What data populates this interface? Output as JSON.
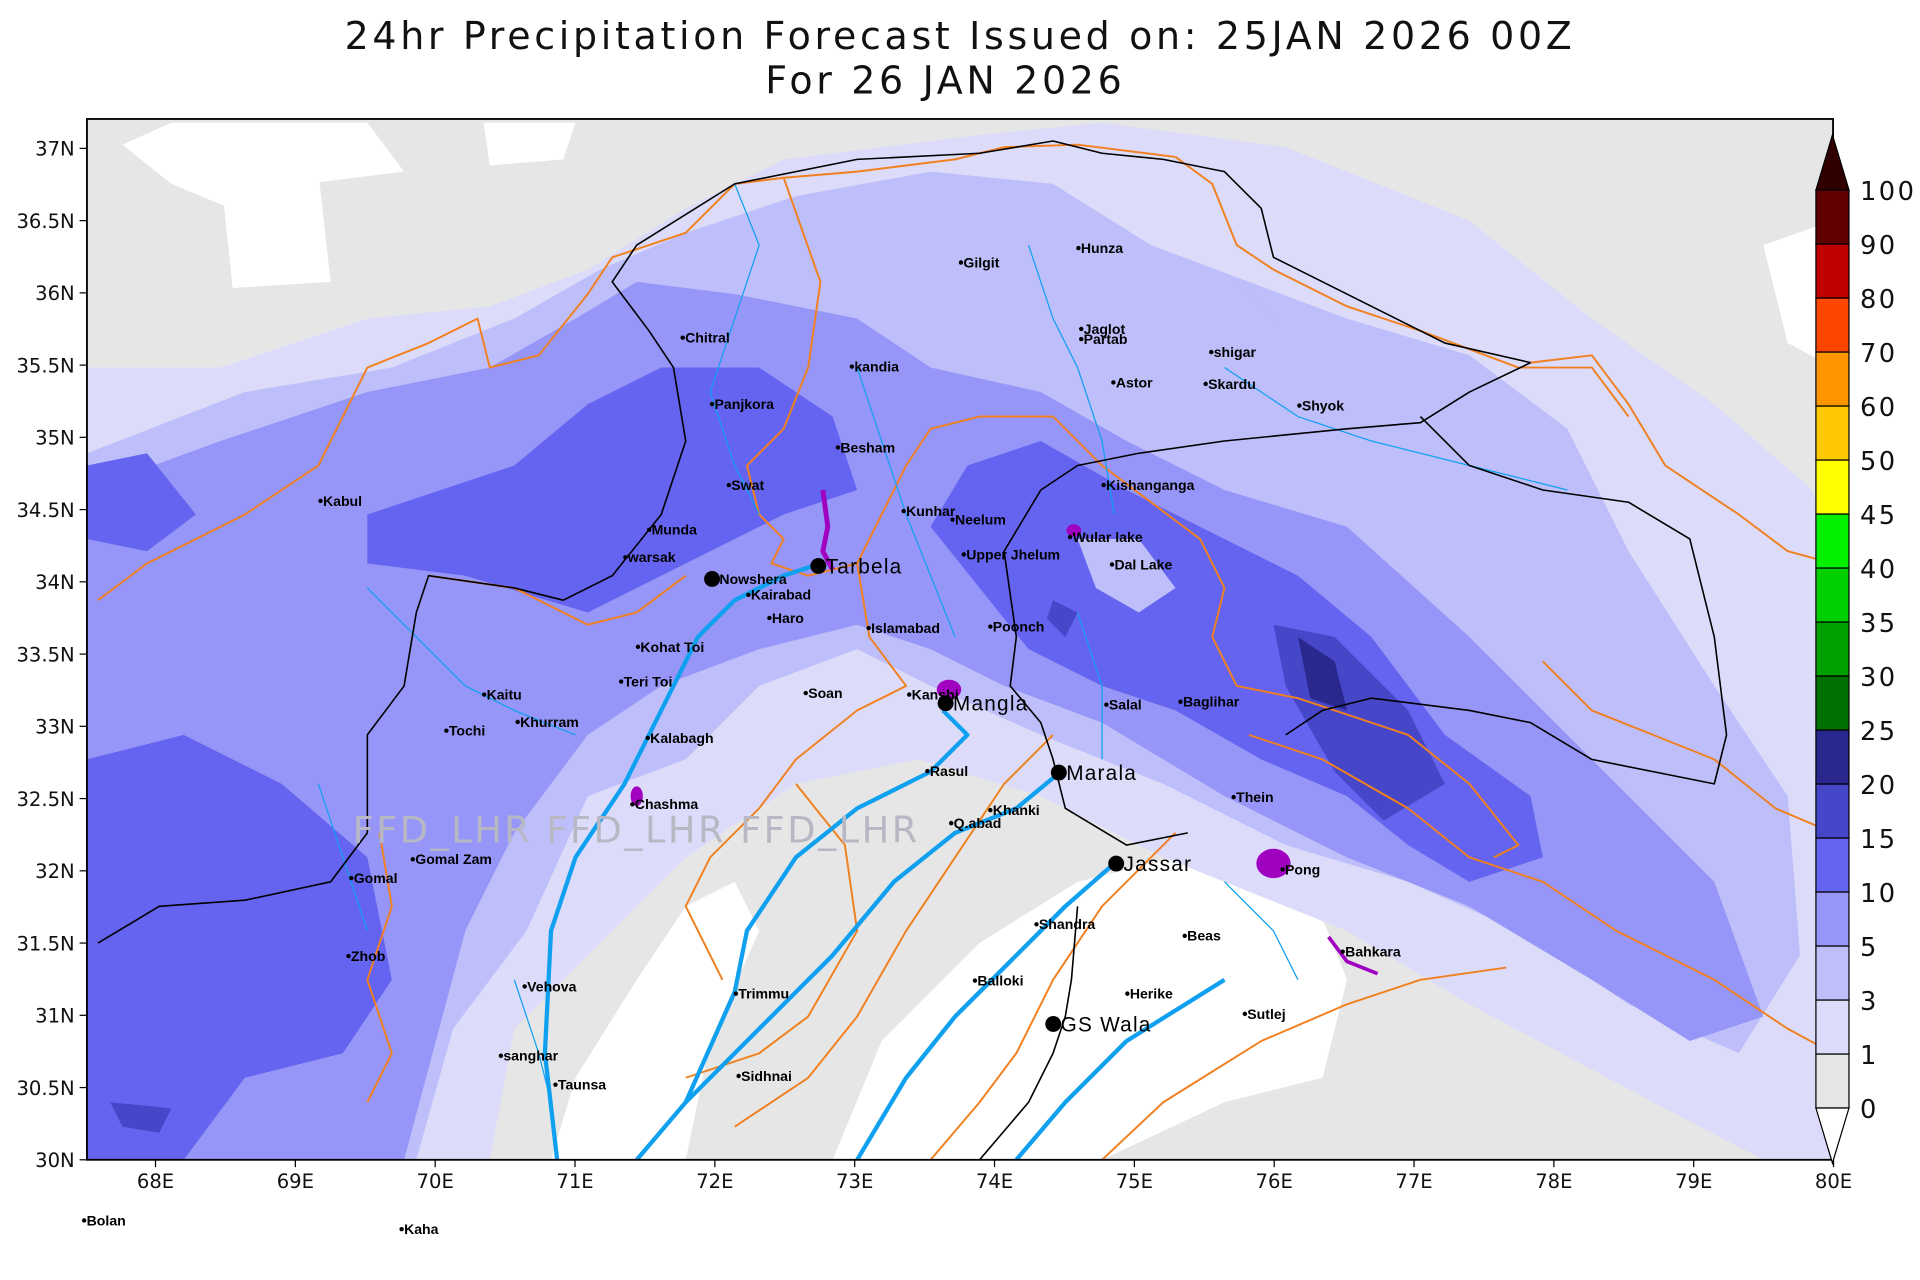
{
  "title": {
    "line1": "24hr Precipitation Forecast Issued on:  25JAN 2026 00Z",
    "line2": "For 26 JAN 2026"
  },
  "map": {
    "lon_range": [
      67.5,
      80
    ],
    "lat_range": [
      30,
      37.2
    ],
    "lon_ticks": [
      "68E",
      "69E",
      "70E",
      "71E",
      "72E",
      "73E",
      "74E",
      "75E",
      "76E",
      "77E",
      "78E",
      "79E",
      "80E"
    ],
    "lat_ticks": [
      "30N",
      "30.5N",
      "31N",
      "31.5N",
      "32N",
      "32.5N",
      "33N",
      "33.5N",
      "34N",
      "34.5N",
      "35N",
      "35.5N",
      "36N",
      "36.5N",
      "37N"
    ],
    "watermark": "FFD_LHR  FFD_LHR  FFD_LHR",
    "colors": {
      "border": "#000000",
      "basin": "#f08020",
      "river": "#10a0f0",
      "lake": "#a000c0"
    }
  },
  "colorbar": {
    "labels": [
      "0",
      "1",
      "3",
      "5",
      "10",
      "15",
      "20",
      "25",
      "30",
      "35",
      "40",
      "45",
      "50",
      "60",
      "70",
      "80",
      "90",
      "100"
    ],
    "colors": [
      "#e6e6e6",
      "#dcdcfa",
      "#bebefa",
      "#9696f8",
      "#6464f0",
      "#4646c8",
      "#28288f",
      "#007000",
      "#00a000",
      "#00d000",
      "#00f000",
      "#ffff00",
      "#ffc800",
      "#ff9600",
      "#ff4600",
      "#c00000",
      "#600000"
    ],
    "under_color": "#ffffff",
    "over_color": "#300000"
  },
  "cities": [
    {
      "name": "Gilgit",
      "lon": 73.76,
      "lat": 36.21
    },
    {
      "name": "Hunza",
      "lon": 74.6,
      "lat": 36.31
    },
    {
      "name": "Chitral",
      "lon": 71.77,
      "lat": 35.69
    },
    {
      "name": "Jaglot",
      "lon": 74.62,
      "lat": 35.75
    },
    {
      "name": "Partab",
      "lon": 74.62,
      "lat": 35.68
    },
    {
      "name": "shigar",
      "lon": 75.55,
      "lat": 35.59
    },
    {
      "name": "kandia",
      "lon": 72.98,
      "lat": 35.49
    },
    {
      "name": "Astor",
      "lon": 74.85,
      "lat": 35.38
    },
    {
      "name": "Skardu",
      "lon": 75.51,
      "lat": 35.37
    },
    {
      "name": "Panjkora",
      "lon": 71.98,
      "lat": 35.23
    },
    {
      "name": "Shyok",
      "lon": 76.18,
      "lat": 35.22
    },
    {
      "name": "Besham",
      "lon": 72.88,
      "lat": 34.93
    },
    {
      "name": "Kabul",
      "lon": 69.18,
      "lat": 34.56
    },
    {
      "name": "Swat",
      "lon": 72.1,
      "lat": 34.67
    },
    {
      "name": "Kishanganga",
      "lon": 74.78,
      "lat": 34.67
    },
    {
      "name": "Kunhar",
      "lon": 73.35,
      "lat": 34.49
    },
    {
      "name": "Neelum",
      "lon": 73.7,
      "lat": 34.43
    },
    {
      "name": "Munda",
      "lon": 71.53,
      "lat": 34.36
    },
    {
      "name": "Wular  lake",
      "lon": 74.54,
      "lat": 34.31
    },
    {
      "name": "warsak",
      "lon": 71.36,
      "lat": 34.17
    },
    {
      "name": "Upper  Jhelum",
      "lon": 73.78,
      "lat": 34.19
    },
    {
      "name": "Dal  Lake",
      "lon": 74.84,
      "lat": 34.12
    },
    {
      "name": "Tarbela",
      "lon": 72.74,
      "lat": 34.11,
      "major": true
    },
    {
      "name": "Nowshera",
      "lon": 71.98,
      "lat": 34.02,
      "major_dot": true
    },
    {
      "name": "Kairabad",
      "lon": 72.24,
      "lat": 33.91
    },
    {
      "name": "Haro",
      "lon": 72.39,
      "lat": 33.75
    },
    {
      "name": "Islamabad",
      "lon": 73.1,
      "lat": 33.68
    },
    {
      "name": "Poonch",
      "lon": 73.97,
      "lat": 33.69
    },
    {
      "name": "Kohat  Toi",
      "lon": 71.45,
      "lat": 33.55
    },
    {
      "name": "Teri  Toi",
      "lon": 71.33,
      "lat": 33.31
    },
    {
      "name": "Soan",
      "lon": 72.65,
      "lat": 33.23
    },
    {
      "name": "Kanshi",
      "lon": 73.39,
      "lat": 33.22
    },
    {
      "name": "Mangla",
      "lon": 73.65,
      "lat": 33.16,
      "major": true
    },
    {
      "name": "Kaitu",
      "lon": 70.35,
      "lat": 33.22
    },
    {
      "name": "Salal",
      "lon": 74.8,
      "lat": 33.15
    },
    {
      "name": "Baglihar",
      "lon": 75.33,
      "lat": 33.17
    },
    {
      "name": "Khurram",
      "lon": 70.59,
      "lat": 33.03
    },
    {
      "name": "Tochi",
      "lon": 70.08,
      "lat": 32.97
    },
    {
      "name": "Kalabagh",
      "lon": 71.52,
      "lat": 32.92
    },
    {
      "name": "Rasul",
      "lon": 73.52,
      "lat": 32.69
    },
    {
      "name": "Marala",
      "lon": 74.46,
      "lat": 32.68,
      "major": true
    },
    {
      "name": "Thein",
      "lon": 75.71,
      "lat": 32.51
    },
    {
      "name": "Chashma",
      "lon": 71.41,
      "lat": 32.46
    },
    {
      "name": "Khanki",
      "lon": 73.97,
      "lat": 32.42
    },
    {
      "name": "Q.abad",
      "lon": 73.69,
      "lat": 32.33
    },
    {
      "name": "Gomal  Zam",
      "lon": 69.84,
      "lat": 32.08
    },
    {
      "name": "Gomal",
      "lon": 69.4,
      "lat": 31.95
    },
    {
      "name": "Pong",
      "lon": 76.06,
      "lat": 32.01
    },
    {
      "name": "Jassar",
      "lon": 74.87,
      "lat": 32.05,
      "major": true
    },
    {
      "name": "Shandra",
      "lon": 74.3,
      "lat": 31.63
    },
    {
      "name": "Beas",
      "lon": 75.36,
      "lat": 31.55
    },
    {
      "name": "Bahkara",
      "lon": 76.49,
      "lat": 31.44
    },
    {
      "name": "Zhob",
      "lon": 69.38,
      "lat": 31.41
    },
    {
      "name": "Vehova",
      "lon": 70.64,
      "lat": 31.2
    },
    {
      "name": "Balloki",
      "lon": 73.86,
      "lat": 31.24
    },
    {
      "name": "Herike",
      "lon": 74.95,
      "lat": 31.15
    },
    {
      "name": "Trimmu",
      "lon": 72.15,
      "lat": 31.15
    },
    {
      "name": "Sutlej",
      "lon": 75.79,
      "lat": 31.01
    },
    {
      "name": "GS  Wala",
      "lon": 74.42,
      "lat": 30.94,
      "major": true
    },
    {
      "name": "sanghar",
      "lon": 70.47,
      "lat": 30.72
    },
    {
      "name": "Taunsa",
      "lon": 70.86,
      "lat": 30.52
    },
    {
      "name": "Sidhnai",
      "lon": 72.17,
      "lat": 30.58
    },
    {
      "name": "Bolan",
      "lon": 67.49,
      "lat": 29.58
    },
    {
      "name": "Kaha",
      "lon": 69.76,
      "lat": 29.52
    }
  ]
}
